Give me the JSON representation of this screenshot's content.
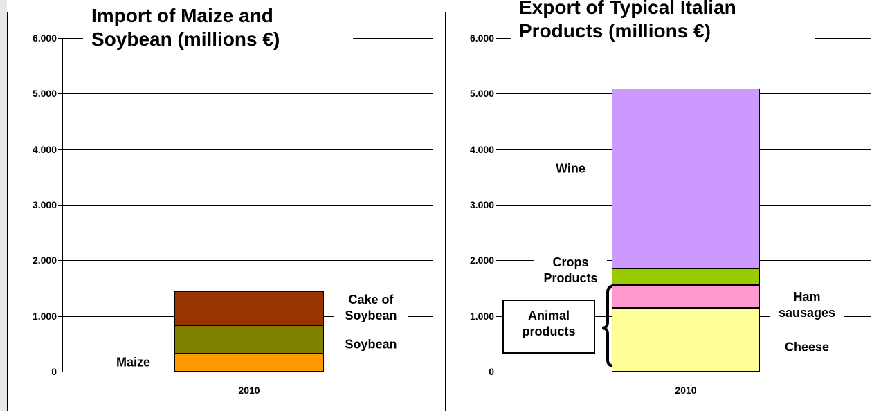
{
  "chart_data": [
    {
      "type": "bar",
      "stacked": true,
      "title": "Import of Maize and Soybean (millions €)",
      "categories": [
        "2010"
      ],
      "series": [
        {
          "name": "Maize",
          "color": "#ff9900",
          "values": [
            320
          ]
        },
        {
          "name": "Soybean",
          "color": "#808000",
          "values": [
            510
          ]
        },
        {
          "name": "Cake of Soybean",
          "color": "#993300",
          "values": [
            620
          ]
        }
      ],
      "ylim": [
        0,
        6000
      ],
      "yticks": [
        0,
        {
          "value": 1000,
          "label": "1.000"
        },
        {
          "value": 2000,
          "label": "2.000"
        },
        {
          "value": 3000,
          "label": "3.000"
        },
        {
          "value": 4000,
          "label": "4.000"
        },
        {
          "value": 5000,
          "label": "5.000"
        },
        {
          "value": 6000,
          "label": "6.000"
        }
      ],
      "grid": true
    },
    {
      "type": "bar",
      "stacked": true,
      "title": "Export of Typical Italian Products (millions €)",
      "categories": [
        "2010"
      ],
      "series": [
        {
          "name": "Cheese",
          "color": "#ffff99",
          "values": [
            1150
          ]
        },
        {
          "name": "Ham sausages",
          "color": "#ff99cc",
          "values": [
            400
          ]
        },
        {
          "name": "Crops Products",
          "color": "#99cc00",
          "values": [
            310
          ]
        },
        {
          "name": "Wine",
          "color": "#cc99ff",
          "values": [
            3230
          ]
        }
      ],
      "ylim": [
        0,
        6000
      ],
      "yticks": [
        0,
        {
          "value": 1000,
          "label": "1.000"
        },
        {
          "value": 2000,
          "label": "2.000"
        },
        {
          "value": 3000,
          "label": "3.000"
        },
        {
          "value": 4000,
          "label": "4.000"
        },
        {
          "value": 5000,
          "label": "5.000"
        },
        {
          "value": 6000,
          "label": "6.000"
        }
      ],
      "grid": true,
      "annotations": [
        "Animal products"
      ]
    }
  ]
}
